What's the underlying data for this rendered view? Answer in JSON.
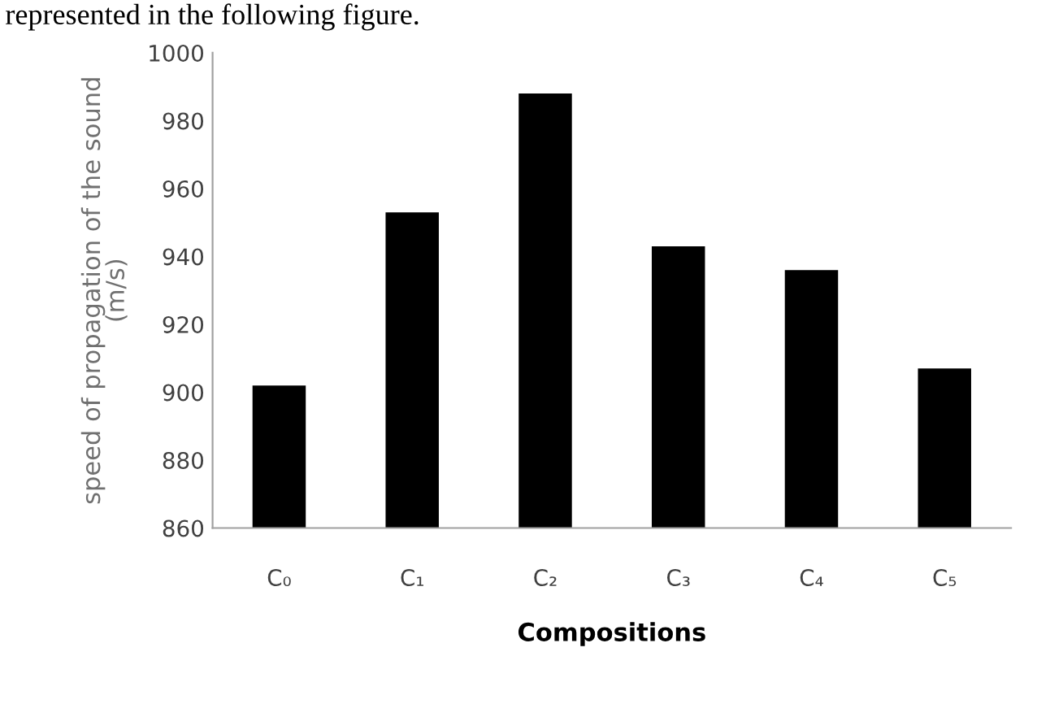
{
  "chart_data": {
    "type": "bar",
    "xlabel": "Compositions",
    "ylabel": "speed of propagation of the sound\n(m/s)",
    "annotations": [
      "represented in the following figure."
    ],
    "categories": [
      "C₀",
      "C₁",
      "C₂",
      "C₃",
      "C₄",
      "C₅"
    ],
    "values": [
      902,
      953,
      988,
      943,
      936,
      907
    ],
    "color": "#000000",
    "ylim": [
      860,
      1000
    ],
    "yticks": [
      860,
      880,
      900,
      920,
      940,
      960,
      980,
      1000
    ],
    "grid": false
  }
}
